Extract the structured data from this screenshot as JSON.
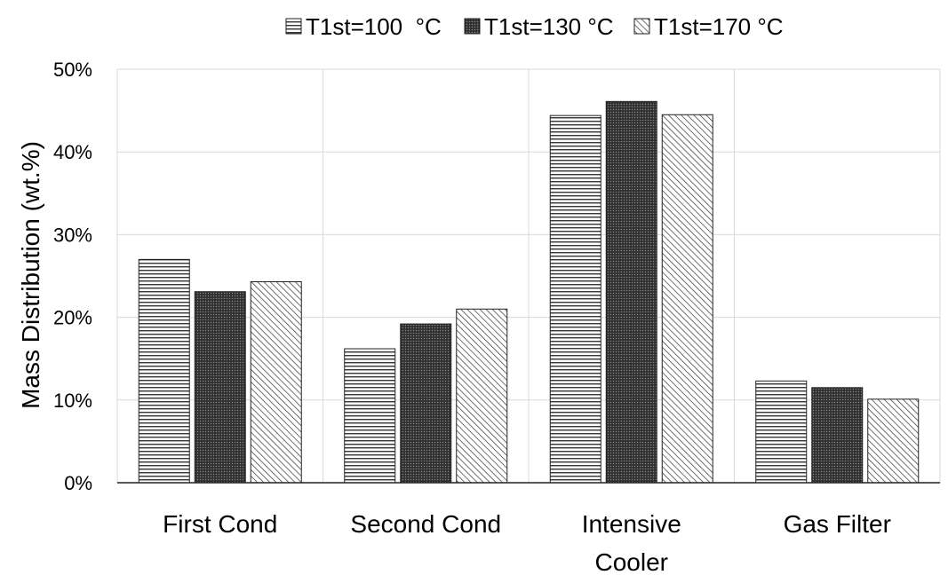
{
  "chart_data": {
    "type": "bar",
    "title": "",
    "xlabel": "",
    "ylabel": "Mass Distribution (wt.%)",
    "ylim": [
      0,
      50
    ],
    "y_ticks": [
      "0%",
      "10%",
      "20%",
      "30%",
      "40%",
      "50%"
    ],
    "y_tick_values": [
      0,
      10,
      20,
      30,
      40,
      50
    ],
    "grid": true,
    "legend_position": "top",
    "categories": [
      [
        "First Cond"
      ],
      [
        "Second Cond"
      ],
      [
        "Intensive",
        "Cooler"
      ],
      [
        "Gas Filter"
      ]
    ],
    "series": [
      {
        "name": "T1st=100  °C",
        "values": [
          27.0,
          16.2,
          44.4,
          12.3
        ],
        "pattern": "horizontal-lines"
      },
      {
        "name": "T1st=130 °C",
        "values": [
          23.1,
          19.2,
          46.1,
          11.5
        ],
        "pattern": "dense-dots"
      },
      {
        "name": "T1st=170 °C",
        "values": [
          24.3,
          21.0,
          44.5,
          10.1
        ],
        "pattern": "diagonal-lines"
      }
    ]
  }
}
